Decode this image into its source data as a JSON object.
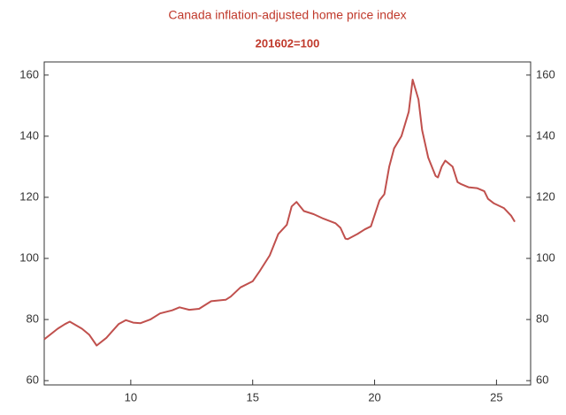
{
  "chart_data": {
    "type": "line",
    "title": "Canada inflation-adjusted home price index",
    "subtitle": "201602=100",
    "x": [
      6.45,
      7.0,
      7.3,
      7.5,
      8.0,
      8.3,
      8.6,
      9.0,
      9.5,
      9.8,
      10.1,
      10.4,
      10.8,
      11.2,
      11.7,
      12.0,
      12.4,
      12.8,
      13.3,
      13.9,
      14.1,
      14.5,
      15.0,
      15.3,
      15.7,
      16.05,
      16.4,
      16.6,
      16.8,
      17.1,
      17.5,
      17.9,
      18.4,
      18.6,
      18.8,
      18.9,
      19.3,
      19.6,
      19.85,
      20.2,
      20.4,
      20.6,
      20.8,
      21.1,
      21.4,
      21.56,
      21.8,
      21.95,
      22.2,
      22.5,
      22.6,
      22.75,
      22.9,
      23.2,
      23.4,
      23.55,
      23.85,
      24.2,
      24.5,
      24.65,
      24.9,
      25.3,
      25.6,
      25.75
    ],
    "series": [
      {
        "name": "Canada inflation-adjusted home price index",
        "color": "#c0504d",
        "values": [
          73.5,
          77,
          78.5,
          79.3,
          77,
          75,
          71.5,
          74,
          78.5,
          79.8,
          79,
          78.8,
          80,
          82,
          83,
          84,
          83.2,
          83.5,
          86,
          86.5,
          87.5,
          90.5,
          92.5,
          96,
          101,
          108,
          111,
          117,
          118.5,
          115.5,
          114.5,
          113,
          111.5,
          110,
          106.5,
          106.3,
          108,
          109.5,
          110.5,
          119,
          121,
          130,
          136,
          140,
          148,
          158.5,
          152,
          142,
          133,
          127,
          126.5,
          130,
          132,
          130,
          125,
          124.3,
          123.3,
          123,
          122,
          119.5,
          118,
          116.5,
          114,
          112
        ]
      }
    ],
    "xlim": [
      6.45,
      26.4
    ],
    "xticks": [
      10,
      15,
      20,
      25
    ],
    "ylim": [
      58.6,
      164.3
    ],
    "yticks": [
      60,
      80,
      100,
      120,
      140,
      160
    ]
  }
}
